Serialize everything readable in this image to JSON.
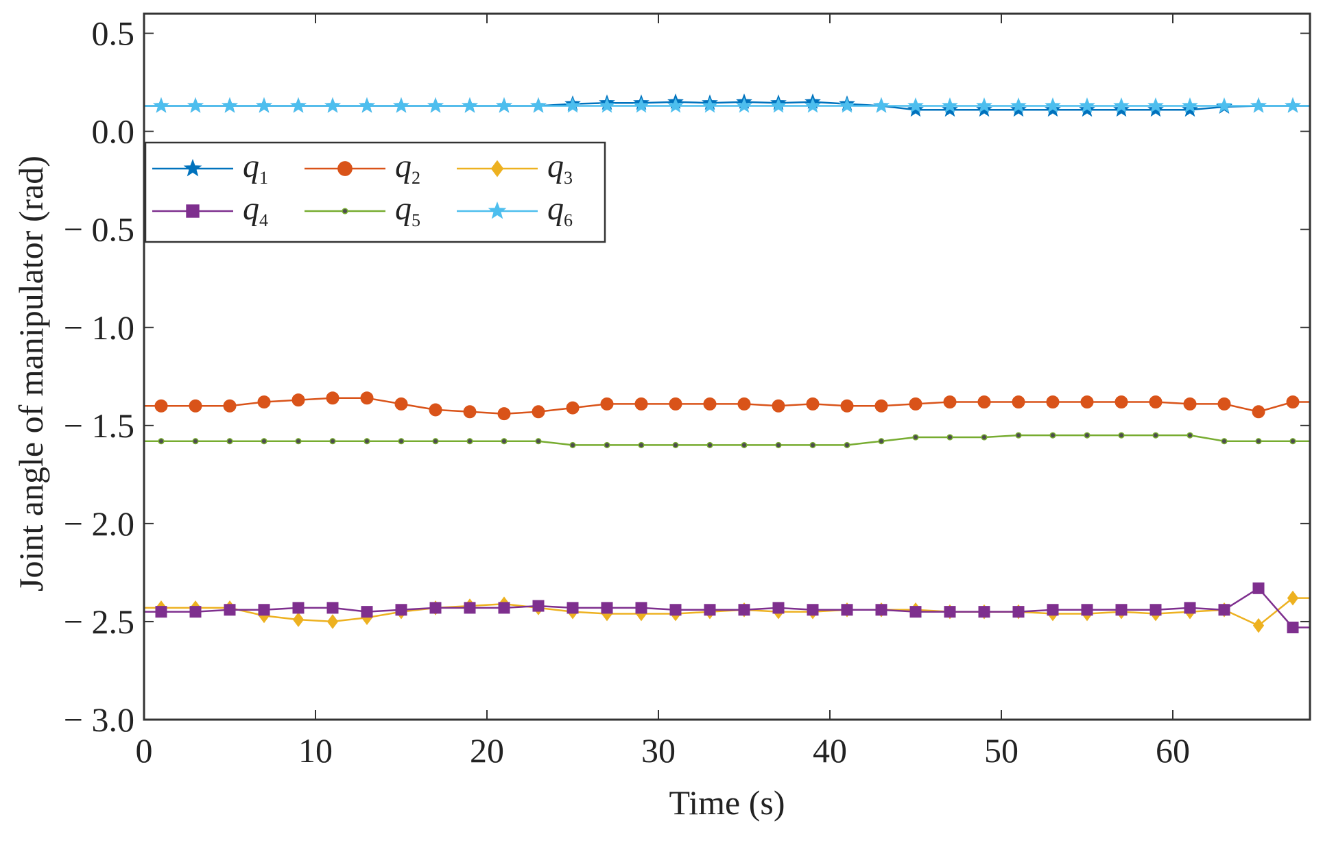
{
  "chart_data": {
    "type": "line",
    "title": "",
    "xlabel": "Time (s)",
    "ylabel": "Joint angle of manipulator (rad)",
    "xlim": [
      0,
      68
    ],
    "ylim": [
      -3.0,
      0.6
    ],
    "x_ticks": [
      0,
      10,
      20,
      30,
      40,
      50,
      60
    ],
    "x_tick_labels": [
      "0",
      "10",
      "20",
      "30",
      "40",
      "50",
      "60"
    ],
    "y_ticks": [
      0.5,
      0.0,
      -0.5,
      -1.0,
      -1.5,
      -2.0,
      -2.5,
      -3.0
    ],
    "y_tick_labels": [
      "0.5",
      "0.0",
      "− 0.5",
      "− 1.0",
      "− 1.5",
      "− 2.0",
      "− 2.5",
      "− 3.0"
    ],
    "grid": false,
    "legend_position": "upper-left",
    "x": [
      1,
      3,
      5,
      7,
      9,
      11,
      13,
      15,
      17,
      19,
      21,
      23,
      25,
      27,
      29,
      31,
      33,
      35,
      37,
      39,
      41,
      43,
      45,
      47,
      49,
      51,
      53,
      55,
      57,
      59,
      61,
      63,
      65,
      67
    ],
    "series": [
      {
        "name": "q1",
        "label": "q",
        "subscript": "1",
        "color": "#0072BD",
        "marker": "star",
        "values": [
          0.13,
          0.13,
          0.13,
          0.13,
          0.13,
          0.13,
          0.13,
          0.13,
          0.13,
          0.13,
          0.13,
          0.13,
          0.14,
          0.145,
          0.145,
          0.15,
          0.145,
          0.15,
          0.145,
          0.15,
          0.14,
          0.13,
          0.11,
          0.11,
          0.11,
          0.11,
          0.11,
          0.11,
          0.11,
          0.11,
          0.11,
          0.125,
          0.13,
          0.13
        ]
      },
      {
        "name": "q2",
        "label": "q",
        "subscript": "2",
        "color": "#D95319",
        "marker": "circle",
        "values": [
          -1.4,
          -1.4,
          -1.4,
          -1.38,
          -1.37,
          -1.36,
          -1.36,
          -1.39,
          -1.42,
          -1.43,
          -1.44,
          -1.43,
          -1.41,
          -1.39,
          -1.39,
          -1.39,
          -1.39,
          -1.39,
          -1.4,
          -1.39,
          -1.4,
          -1.4,
          -1.39,
          -1.38,
          -1.38,
          -1.38,
          -1.38,
          -1.38,
          -1.38,
          -1.38,
          -1.39,
          -1.39,
          -1.43,
          -1.38
        ]
      },
      {
        "name": "q3",
        "label": "q",
        "subscript": "3",
        "color": "#EDB120",
        "marker": "diamond",
        "values": [
          -2.43,
          -2.43,
          -2.43,
          -2.47,
          -2.49,
          -2.5,
          -2.48,
          -2.45,
          -2.43,
          -2.42,
          -2.41,
          -2.43,
          -2.45,
          -2.46,
          -2.46,
          -2.46,
          -2.45,
          -2.44,
          -2.45,
          -2.45,
          -2.44,
          -2.44,
          -2.44,
          -2.45,
          -2.45,
          -2.45,
          -2.46,
          -2.46,
          -2.45,
          -2.46,
          -2.45,
          -2.44,
          -2.52,
          -2.38
        ]
      },
      {
        "name": "q4",
        "label": "q",
        "subscript": "4",
        "color": "#7E2F8E",
        "marker": "square",
        "values": [
          -2.45,
          -2.45,
          -2.44,
          -2.44,
          -2.43,
          -2.43,
          -2.45,
          -2.44,
          -2.43,
          -2.43,
          -2.43,
          -2.42,
          -2.43,
          -2.43,
          -2.43,
          -2.44,
          -2.44,
          -2.44,
          -2.43,
          -2.44,
          -2.44,
          -2.44,
          -2.45,
          -2.45,
          -2.45,
          -2.45,
          -2.44,
          -2.44,
          -2.44,
          -2.44,
          -2.43,
          -2.44,
          -2.33,
          -2.53
        ]
      },
      {
        "name": "q5",
        "label": "q",
        "subscript": "5",
        "color": "#77AC30",
        "marker": "dot",
        "values": [
          -1.58,
          -1.58,
          -1.58,
          -1.58,
          -1.58,
          -1.58,
          -1.58,
          -1.58,
          -1.58,
          -1.58,
          -1.58,
          -1.58,
          -1.6,
          -1.6,
          -1.6,
          -1.6,
          -1.6,
          -1.6,
          -1.6,
          -1.6,
          -1.6,
          -1.58,
          -1.56,
          -1.56,
          -1.56,
          -1.55,
          -1.55,
          -1.55,
          -1.55,
          -1.55,
          -1.55,
          -1.58,
          -1.58,
          -1.58
        ]
      },
      {
        "name": "q6",
        "label": "q",
        "subscript": "6",
        "color": "#4DBEEE",
        "marker": "star",
        "values": [
          0.13,
          0.13,
          0.13,
          0.13,
          0.13,
          0.13,
          0.13,
          0.13,
          0.13,
          0.13,
          0.13,
          0.13,
          0.13,
          0.13,
          0.13,
          0.13,
          0.13,
          0.13,
          0.13,
          0.13,
          0.13,
          0.13,
          0.13,
          0.13,
          0.13,
          0.13,
          0.13,
          0.13,
          0.13,
          0.13,
          0.13,
          0.13,
          0.13,
          0.13
        ]
      }
    ]
  }
}
